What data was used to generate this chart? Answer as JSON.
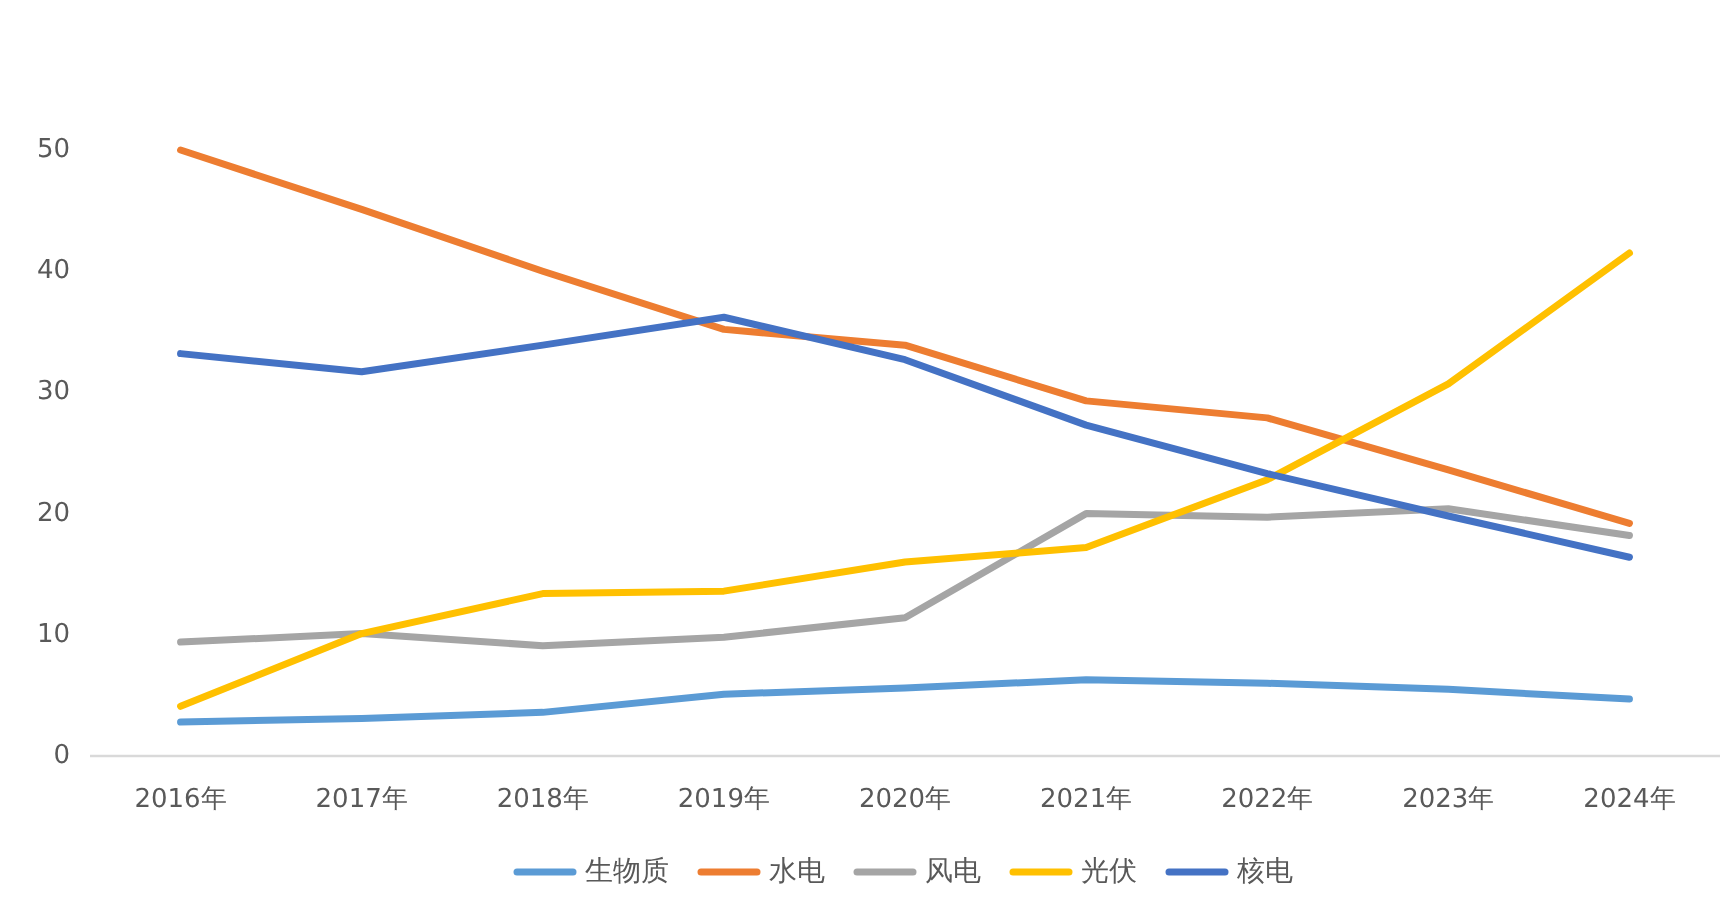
{
  "chart_data": {
    "type": "line",
    "categories": [
      "2016年",
      "2017年",
      "2018年",
      "2019年",
      "2020年",
      "2021年",
      "2022年",
      "2023年",
      "2024年"
    ],
    "series": [
      {
        "name": "生物质",
        "color": "#5b9bd5",
        "values": [
          2.8,
          3.1,
          3.6,
          5.1,
          5.6,
          6.3,
          6.0,
          5.5,
          4.7
        ]
      },
      {
        "name": "水电",
        "color": "#ed7d31",
        "values": [
          50,
          45.1,
          40,
          35.2,
          33.9,
          29.3,
          27.9,
          23.6,
          19.2
        ]
      },
      {
        "name": "风电",
        "color": "#a5a5a5",
        "values": [
          9.4,
          10.1,
          9.1,
          9.8,
          11.4,
          20.0,
          19.7,
          20.4,
          18.2
        ]
      },
      {
        "name": "光伏",
        "color": "#ffc000",
        "values": [
          4.1,
          10.1,
          13.4,
          13.6,
          16.0,
          17.2,
          22.8,
          30.7,
          41.5
        ]
      },
      {
        "name": "核电",
        "color": "#4472c4",
        "values": [
          33.2,
          31.7,
          33.9,
          36.2,
          32.7,
          27.3,
          23.3,
          19.8,
          16.4
        ]
      }
    ],
    "ylim": [
      0,
      50
    ],
    "yticks": [
      0,
      10,
      20,
      30,
      40,
      50
    ],
    "legend": "bottom"
  }
}
